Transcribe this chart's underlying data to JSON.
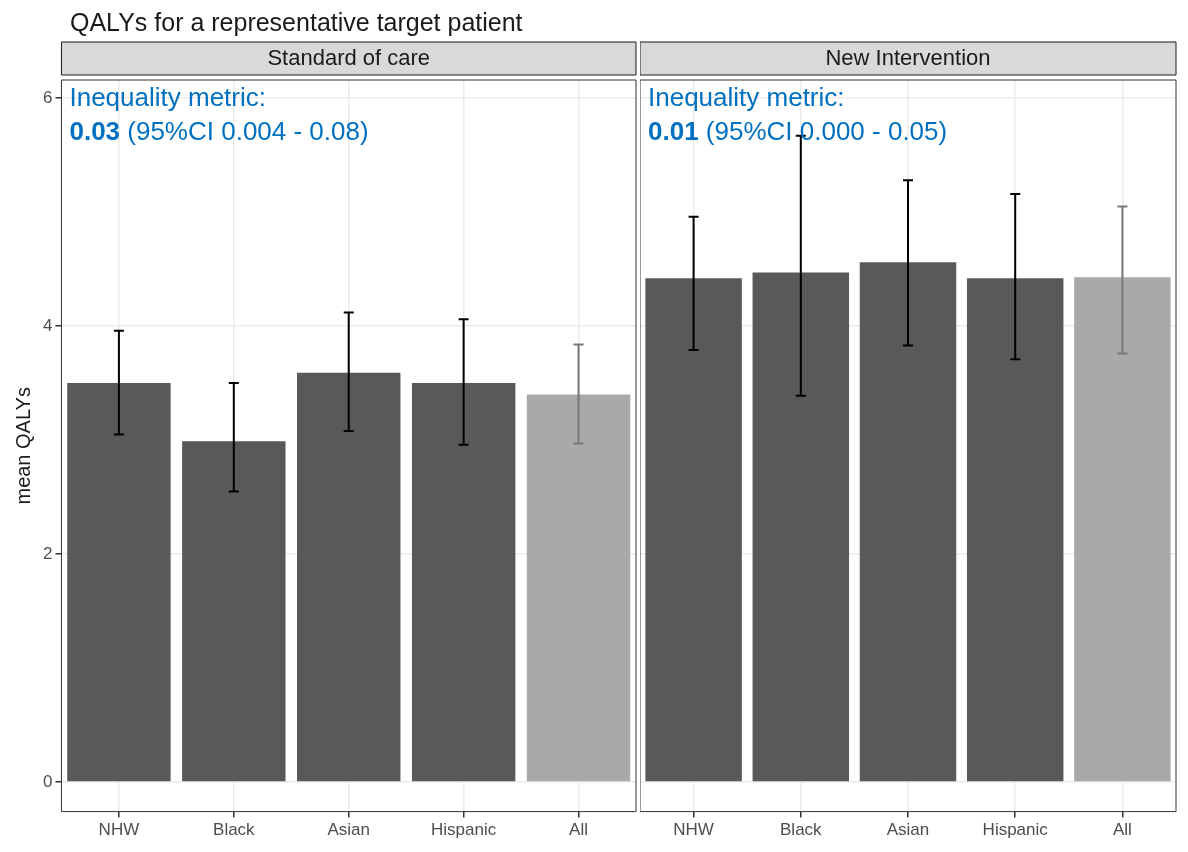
{
  "chart_data": [
    {
      "type": "bar",
      "title": "QALYs for a representative target patient",
      "subtitle": "Standard of care",
      "ylabel": "mean QALYs",
      "categories": [
        "NHW",
        "Black",
        "Asian",
        "Hispanic",
        "All"
      ],
      "values": [
        3.5,
        2.99,
        3.59,
        3.5,
        3.4
      ],
      "colors": [
        "#595959",
        "#595959",
        "#595959",
        "#595959",
        "#a9a9a9"
      ],
      "errors": [
        [
          3.05,
          3.96
        ],
        [
          2.55,
          3.5
        ],
        [
          3.08,
          4.12
        ],
        [
          2.96,
          4.06
        ],
        [
          2.97,
          3.84
        ]
      ],
      "ylim": [
        -0.26,
        6.16
      ],
      "yticks": [
        0,
        2,
        4,
        6
      ],
      "grid": true,
      "annotations": [
        "Inequality metric:",
        "0.03 (95%CI 0.004 - 0.08)"
      ]
    },
    {
      "type": "bar",
      "subtitle": "New Intervention",
      "categories": [
        "NHW",
        "Black",
        "Asian",
        "Hispanic",
        "All"
      ],
      "values": [
        4.42,
        4.47,
        4.56,
        4.42,
        4.43
      ],
      "colors": [
        "#595959",
        "#595959",
        "#595959",
        "#595959",
        "#a9a9a9"
      ],
      "errors": [
        [
          3.79,
          4.96
        ],
        [
          3.39,
          5.67
        ],
        [
          3.83,
          5.28
        ],
        [
          3.71,
          5.16
        ],
        [
          3.76,
          5.05
        ]
      ],
      "ylim": [
        -0.26,
        6.16
      ],
      "yticks": [
        0,
        2,
        4,
        6
      ],
      "grid": true,
      "tick_labels": "x",
      "annotations": [
        "Inequality metric:",
        "0.01 (95%CI 0.000 - 0.05)"
      ]
    }
  ]
}
